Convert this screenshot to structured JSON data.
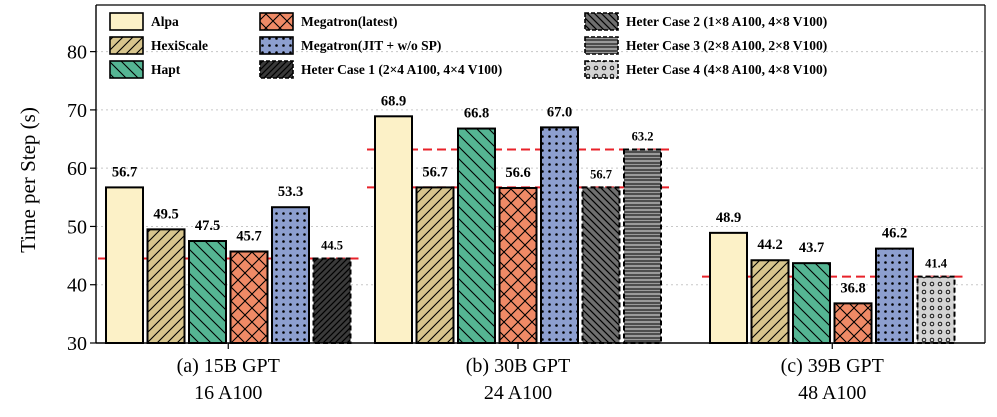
{
  "chart_data": {
    "type": "bar",
    "title": "",
    "xlabel": "",
    "ylabel": "Time per Step (s)",
    "ylim": [
      30,
      88
    ],
    "yticks": [
      30,
      40,
      50,
      60,
      70,
      80
    ],
    "grid": true,
    "legend_position": "top",
    "groups": [
      {
        "label_line1": "(a) 15B GPT",
        "label_line2": "16 A100",
        "bars": [
          {
            "series": "Alpa",
            "value": 56.7,
            "label": "56.7"
          },
          {
            "series": "HexiScale",
            "value": 49.5,
            "label": "49.5"
          },
          {
            "series": "Hapt",
            "value": 47.5,
            "label": "47.5"
          },
          {
            "series": "Megatron(latest)",
            "value": 45.7,
            "label": "45.7"
          },
          {
            "series": "Megatron(JIT + w/o SP)",
            "value": 53.3,
            "label": "53.3"
          },
          {
            "series": "Heter Case 1 (2×4 A100, 4×4 V100)",
            "value": 44.5,
            "label": "44.5"
          }
        ],
        "reference_lines": [
          44.5
        ]
      },
      {
        "label_line1": "(b) 30B GPT",
        "label_line2": "24 A100",
        "bars": [
          {
            "series": "Alpa",
            "value": 68.9,
            "label": "68.9"
          },
          {
            "series": "HexiScale",
            "value": 56.7,
            "label": "56.7"
          },
          {
            "series": "Hapt",
            "value": 66.8,
            "label": "66.8"
          },
          {
            "series": "Megatron(latest)",
            "value": 56.6,
            "label": "56.6"
          },
          {
            "series": "Megatron(JIT + w/o SP)",
            "value": 67.0,
            "label": "67.0"
          },
          {
            "series": "Heter Case 2 (1×8 A100, 4×8 V100)",
            "value": 56.7,
            "label": "56.7"
          },
          {
            "series": "Heter Case 3 (2×8 A100, 2×8 V100)",
            "value": 63.2,
            "label": "63.2"
          }
        ],
        "reference_lines": [
          63.2,
          56.7
        ]
      },
      {
        "label_line1": "(c) 39B GPT",
        "label_line2": "48 A100",
        "bars": [
          {
            "series": "Alpa",
            "value": 48.9,
            "label": "48.9"
          },
          {
            "series": "HexiScale",
            "value": 44.2,
            "label": "44.2"
          },
          {
            "series": "Hapt",
            "value": 43.7,
            "label": "43.7"
          },
          {
            "series": "Megatron(latest)",
            "value": 36.8,
            "label": "36.8"
          },
          {
            "series": "Megatron(JIT + w/o SP)",
            "value": 46.2,
            "label": "46.2"
          },
          {
            "series": "Heter Case 4 (4×8 A100, 4×8 V100)",
            "value": 41.4,
            "label": "41.4"
          }
        ],
        "reference_lines": [
          41.4
        ]
      }
    ],
    "legend": [
      {
        "name": "Alpa",
        "color": "#fcf1c7",
        "pattern": "none",
        "border": "solid"
      },
      {
        "name": "HexiScale",
        "color": "#d7c58d",
        "pattern": "diag-fwd",
        "border": "solid"
      },
      {
        "name": "Hapt",
        "color": "#55b593",
        "pattern": "diag-back",
        "border": "solid"
      },
      {
        "name": "Megatron(latest)",
        "color": "#ef8a66",
        "pattern": "cross",
        "border": "solid"
      },
      {
        "name": "Megatron(JIT + w/o SP)",
        "color": "#8d9fcf",
        "pattern": "dots",
        "border": "solid"
      },
      {
        "name": "Heter Case 1 (2×4 A100, 4×4 V100)",
        "color": "#3a3a3a",
        "pattern": "dense-diag",
        "border": "dashed"
      },
      {
        "name": "Heter Case 2 (1×8 A100, 4×8 V100)",
        "color": "#6f6f6f",
        "pattern": "diag-back-dense",
        "border": "dashed"
      },
      {
        "name": "Heter Case 3 (2×8 A100, 2×8 V100)",
        "color": "#9a9a9a",
        "pattern": "hlines",
        "border": "dashed"
      },
      {
        "name": "Heter Case 4 (4×8 A100, 4×8 V100)",
        "color": "#d4d4d4",
        "pattern": "circles",
        "border": "dashed"
      }
    ],
    "colors": {
      "reference_line": "#e8222a",
      "edge": "#000000",
      "grid": "#c8c8c8"
    }
  }
}
